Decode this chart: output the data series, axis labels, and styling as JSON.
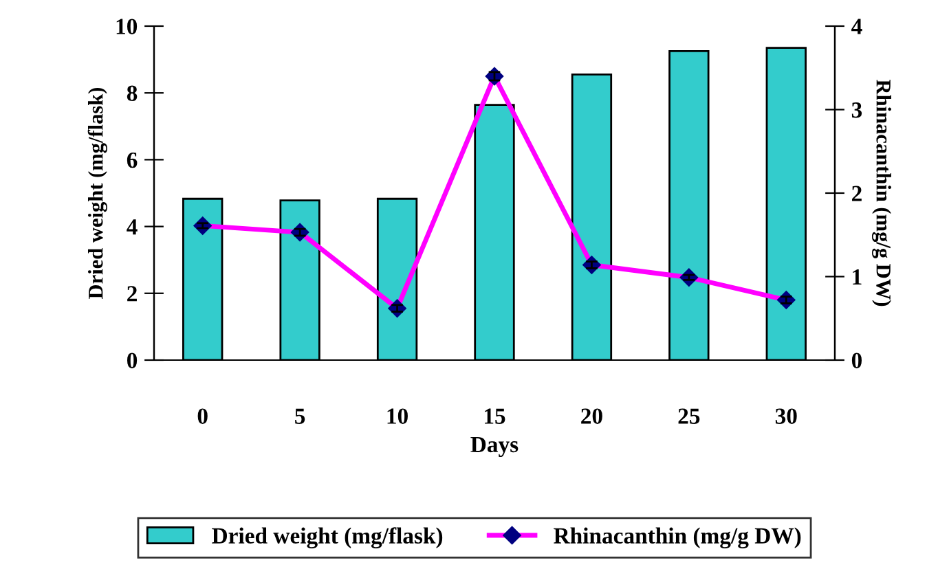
{
  "chart_data": {
    "type": "bar",
    "xlabel": "Days",
    "ylabel": "Dried weight (mg/flask)",
    "y2label": "Rhinacanthin (mg/g DW)",
    "categories": [
      "0",
      "5",
      "10",
      "15",
      "20",
      "25",
      "30"
    ],
    "series": [
      {
        "name": "Dried weight (mg/flask)",
        "color": "#33cccc",
        "values": [
          4.83,
          4.78,
          4.83,
          7.64,
          8.55,
          9.25,
          9.35
        ]
      },
      {
        "name": "Rhinacanthin (mg/g DW)",
        "type": "line",
        "axis": "y2",
        "color": "#ff00ff",
        "marker": "diamond",
        "values": [
          1.61,
          1.53,
          0.62,
          3.4,
          1.14,
          0.99,
          0.72
        ],
        "errors": [
          0.03,
          0.04,
          0.04,
          0.05,
          0.04,
          0.03,
          0.04
        ]
      }
    ],
    "ylim": [
      0,
      10
    ],
    "yticks": [
      0,
      2,
      4,
      6,
      8,
      10
    ],
    "y2lim": [
      0,
      4
    ],
    "y2ticks": [
      0,
      1,
      2,
      3,
      4
    ],
    "grid": false,
    "legend": "bottom"
  }
}
